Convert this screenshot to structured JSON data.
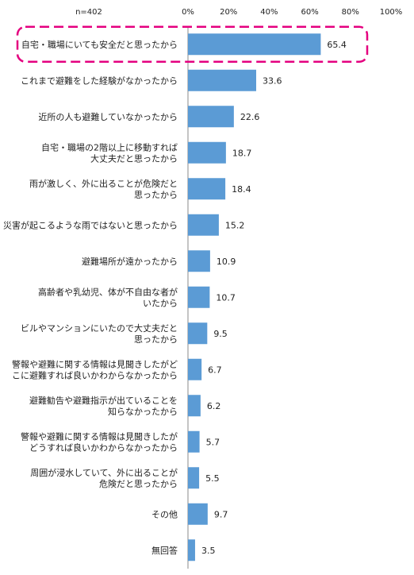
{
  "chart_data": {
    "type": "bar",
    "orientation": "horizontal",
    "sample_size_label": "n=402",
    "xlim": [
      0,
      100
    ],
    "x_ticks": [
      "0%",
      "20%",
      "40%",
      "60%",
      "80%",
      "100%"
    ],
    "grid": false,
    "bar_color": "#5b9bd5",
    "highlight_color": "#e4007f",
    "highlighted_category_index": 0,
    "categories": [
      [
        "自宅・職場にいても安全だと思ったから"
      ],
      [
        "これまで避難をした経験がなかったから"
      ],
      [
        "近所の人も避難していなかったから"
      ],
      [
        "自宅・職場の2階以上に移動すれば",
        "大丈夫だと思ったから"
      ],
      [
        "雨が激しく、外に出ることが危険だと",
        "思ったから"
      ],
      [
        "災害が起こるような雨ではないと思ったから"
      ],
      [
        "避難場所が遠かったから"
      ],
      [
        "高齢者や乳幼児、体が不自由な者が",
        "いたから"
      ],
      [
        "ビルやマンションにいたので大丈夫だと",
        "思ったから"
      ],
      [
        "警報や避難に関する情報は見聞きしたがど",
        "こに避難すれば良いかわからなかったから"
      ],
      [
        "避難勧告や避難指示が出ていることを",
        "知らなかったから"
      ],
      [
        "警報や避難に関する情報は見聞きしたが",
        "どうすれば良いかわからなかったから"
      ],
      [
        "周囲が浸水していて、外に出ることが",
        "危険だと思ったから"
      ],
      [
        "その他"
      ],
      [
        "無回答"
      ]
    ],
    "values": [
      65.4,
      33.6,
      22.6,
      18.7,
      18.4,
      15.2,
      10.9,
      10.7,
      9.5,
      6.7,
      6.2,
      5.7,
      5.5,
      9.7,
      3.5
    ],
    "value_labels": [
      "65.4",
      "33.6",
      "22.6",
      "18.7",
      "18.4",
      "15.2",
      "10.9",
      "10.7",
      "9.5",
      "6.7",
      "6.2",
      "5.7",
      "5.5",
      "9.7",
      "3.5"
    ]
  }
}
